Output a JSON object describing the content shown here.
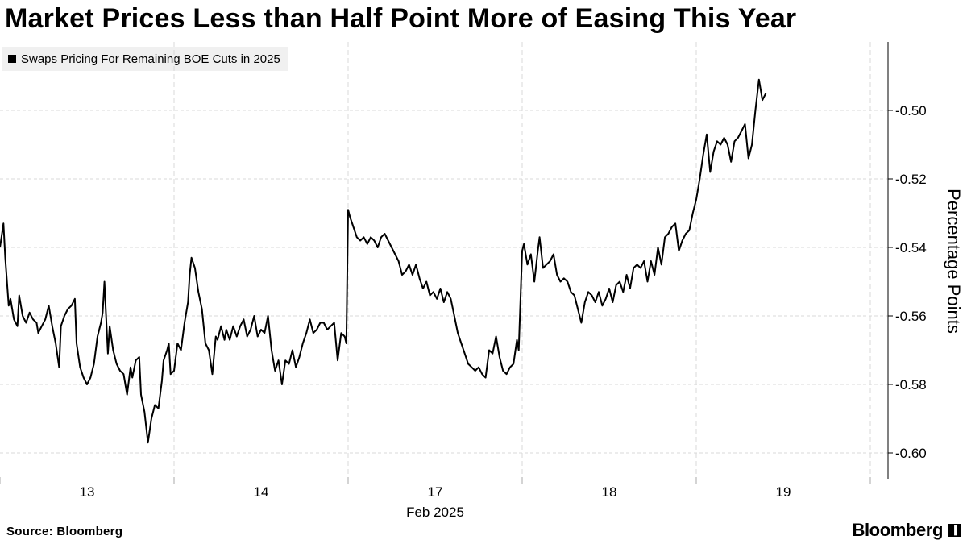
{
  "header": {
    "title": "Market Prices Less than Half Point More of Easing This Year"
  },
  "legend": {
    "label": "Swaps Pricing For Remaining BOE Cuts in 2025"
  },
  "footer": {
    "source": "Source: Bloomberg",
    "brand": "Bloomberg",
    "brand_badge_icon": "bloomberg-terminal-icon"
  },
  "colors": {
    "line": "#000000",
    "grid": "#d9d9d9",
    "legend_bg": "#f0f0f0"
  },
  "chart_data": {
    "type": "line",
    "title": "Market Prices Less than Half Point More of Easing This Year",
    "ylabel": "Percentage Points",
    "xlabel_secondary": "Feb 2025",
    "ylim": [
      -0.607,
      -0.481
    ],
    "y_ticks": [
      -0.5,
      -0.52,
      -0.54,
      -0.56,
      -0.58,
      -0.6
    ],
    "y_tick_labels": [
      "-0.50",
      "-0.52",
      "-0.54",
      "-0.56",
      "-0.58",
      "-0.60"
    ],
    "x_range": [
      0,
      5
    ],
    "day_boundaries": [
      0,
      1,
      2,
      3,
      4,
      5
    ],
    "x_ticks": [
      {
        "label": "13",
        "x": 0.5
      },
      {
        "label": "14",
        "x": 1.5
      },
      {
        "label": "17",
        "x": 2.5
      },
      {
        "label": "18",
        "x": 3.5
      },
      {
        "label": "19",
        "x": 4.5
      }
    ],
    "grid": true,
    "legend_position": "top-left",
    "y_axis_side": "right",
    "series": [
      {
        "name": "Swaps Pricing For Remaining BOE Cuts in 2025",
        "points": [
          [
            0.0,
            -0.54
          ],
          [
            0.02,
            -0.533
          ],
          [
            0.03,
            -0.543
          ],
          [
            0.05,
            -0.557
          ],
          [
            0.06,
            -0.555
          ],
          [
            0.08,
            -0.561
          ],
          [
            0.1,
            -0.563
          ],
          [
            0.11,
            -0.554
          ],
          [
            0.13,
            -0.56
          ],
          [
            0.15,
            -0.562
          ],
          [
            0.17,
            -0.559
          ],
          [
            0.19,
            -0.561
          ],
          [
            0.21,
            -0.562
          ],
          [
            0.22,
            -0.565
          ],
          [
            0.24,
            -0.563
          ],
          [
            0.26,
            -0.561
          ],
          [
            0.28,
            -0.557
          ],
          [
            0.3,
            -0.563
          ],
          [
            0.32,
            -0.568
          ],
          [
            0.34,
            -0.575
          ],
          [
            0.35,
            -0.563
          ],
          [
            0.37,
            -0.56
          ],
          [
            0.39,
            -0.558
          ],
          [
            0.41,
            -0.557
          ],
          [
            0.43,
            -0.555
          ],
          [
            0.44,
            -0.568
          ],
          [
            0.46,
            -0.575
          ],
          [
            0.48,
            -0.578
          ],
          [
            0.5,
            -0.58
          ],
          [
            0.52,
            -0.578
          ],
          [
            0.54,
            -0.574
          ],
          [
            0.56,
            -0.566
          ],
          [
            0.58,
            -0.562
          ],
          [
            0.59,
            -0.559
          ],
          [
            0.6,
            -0.55
          ],
          [
            0.62,
            -0.571
          ],
          [
            0.63,
            -0.563
          ],
          [
            0.65,
            -0.57
          ],
          [
            0.67,
            -0.574
          ],
          [
            0.69,
            -0.576
          ],
          [
            0.71,
            -0.577
          ],
          [
            0.73,
            -0.583
          ],
          [
            0.75,
            -0.575
          ],
          [
            0.76,
            -0.578
          ],
          [
            0.78,
            -0.573
          ],
          [
            0.8,
            -0.572
          ],
          [
            0.81,
            -0.583
          ],
          [
            0.83,
            -0.588
          ],
          [
            0.85,
            -0.597
          ],
          [
            0.87,
            -0.59
          ],
          [
            0.89,
            -0.586
          ],
          [
            0.91,
            -0.587
          ],
          [
            0.93,
            -0.579
          ],
          [
            0.94,
            -0.573
          ],
          [
            0.96,
            -0.57
          ],
          [
            0.97,
            -0.568
          ],
          [
            0.98,
            -0.577
          ],
          [
            1.0,
            -0.576
          ],
          [
            1.02,
            -0.568
          ],
          [
            1.04,
            -0.57
          ],
          [
            1.06,
            -0.562
          ],
          [
            1.08,
            -0.556
          ],
          [
            1.09,
            -0.548
          ],
          [
            1.1,
            -0.543
          ],
          [
            1.12,
            -0.546
          ],
          [
            1.14,
            -0.553
          ],
          [
            1.16,
            -0.558
          ],
          [
            1.18,
            -0.568
          ],
          [
            1.2,
            -0.57
          ],
          [
            1.22,
            -0.577
          ],
          [
            1.24,
            -0.566
          ],
          [
            1.25,
            -0.567
          ],
          [
            1.27,
            -0.563
          ],
          [
            1.29,
            -0.567
          ],
          [
            1.3,
            -0.564
          ],
          [
            1.32,
            -0.567
          ],
          [
            1.34,
            -0.563
          ],
          [
            1.36,
            -0.566
          ],
          [
            1.38,
            -0.563
          ],
          [
            1.4,
            -0.561
          ],
          [
            1.42,
            -0.566
          ],
          [
            1.44,
            -0.564
          ],
          [
            1.46,
            -0.56
          ],
          [
            1.48,
            -0.566
          ],
          [
            1.5,
            -0.564
          ],
          [
            1.52,
            -0.565
          ],
          [
            1.54,
            -0.56
          ],
          [
            1.56,
            -0.57
          ],
          [
            1.58,
            -0.576
          ],
          [
            1.6,
            -0.573
          ],
          [
            1.62,
            -0.58
          ],
          [
            1.64,
            -0.573
          ],
          [
            1.66,
            -0.574
          ],
          [
            1.68,
            -0.57
          ],
          [
            1.7,
            -0.575
          ],
          [
            1.72,
            -0.572
          ],
          [
            1.74,
            -0.568
          ],
          [
            1.76,
            -0.565
          ],
          [
            1.78,
            -0.561
          ],
          [
            1.8,
            -0.565
          ],
          [
            1.82,
            -0.564
          ],
          [
            1.84,
            -0.562
          ],
          [
            1.86,
            -0.562
          ],
          [
            1.88,
            -0.564
          ],
          [
            1.9,
            -0.563
          ],
          [
            1.92,
            -0.562
          ],
          [
            1.94,
            -0.573
          ],
          [
            1.96,
            -0.565
          ],
          [
            1.98,
            -0.566
          ],
          [
            1.99,
            -0.568
          ],
          [
            2.0,
            -0.529
          ],
          [
            2.01,
            -0.531
          ],
          [
            2.03,
            -0.534
          ],
          [
            2.05,
            -0.537
          ],
          [
            2.07,
            -0.538
          ],
          [
            2.09,
            -0.537
          ],
          [
            2.11,
            -0.539
          ],
          [
            2.13,
            -0.537
          ],
          [
            2.15,
            -0.538
          ],
          [
            2.17,
            -0.54
          ],
          [
            2.19,
            -0.537
          ],
          [
            2.21,
            -0.536
          ],
          [
            2.23,
            -0.538
          ],
          [
            2.25,
            -0.54
          ],
          [
            2.27,
            -0.542
          ],
          [
            2.29,
            -0.544
          ],
          [
            2.31,
            -0.548
          ],
          [
            2.33,
            -0.547
          ],
          [
            2.35,
            -0.545
          ],
          [
            2.37,
            -0.548
          ],
          [
            2.39,
            -0.545
          ],
          [
            2.41,
            -0.549
          ],
          [
            2.43,
            -0.552
          ],
          [
            2.45,
            -0.55
          ],
          [
            2.47,
            -0.554
          ],
          [
            2.49,
            -0.553
          ],
          [
            2.51,
            -0.555
          ],
          [
            2.53,
            -0.552
          ],
          [
            2.55,
            -0.556
          ],
          [
            2.57,
            -0.553
          ],
          [
            2.59,
            -0.555
          ],
          [
            2.61,
            -0.56
          ],
          [
            2.63,
            -0.565
          ],
          [
            2.65,
            -0.568
          ],
          [
            2.67,
            -0.571
          ],
          [
            2.69,
            -0.574
          ],
          [
            2.71,
            -0.575
          ],
          [
            2.73,
            -0.576
          ],
          [
            2.75,
            -0.575
          ],
          [
            2.77,
            -0.577
          ],
          [
            2.79,
            -0.578
          ],
          [
            2.81,
            -0.57
          ],
          [
            2.83,
            -0.571
          ],
          [
            2.85,
            -0.566
          ],
          [
            2.87,
            -0.572
          ],
          [
            2.89,
            -0.576
          ],
          [
            2.91,
            -0.577
          ],
          [
            2.93,
            -0.575
          ],
          [
            2.95,
            -0.574
          ],
          [
            2.97,
            -0.567
          ],
          [
            2.98,
            -0.57
          ],
          [
            3.0,
            -0.541
          ],
          [
            3.01,
            -0.539
          ],
          [
            3.03,
            -0.545
          ],
          [
            3.05,
            -0.542
          ],
          [
            3.07,
            -0.55
          ],
          [
            3.09,
            -0.541
          ],
          [
            3.1,
            -0.537
          ],
          [
            3.12,
            -0.546
          ],
          [
            3.14,
            -0.545
          ],
          [
            3.16,
            -0.544
          ],
          [
            3.18,
            -0.542
          ],
          [
            3.2,
            -0.548
          ],
          [
            3.22,
            -0.55
          ],
          [
            3.24,
            -0.549
          ],
          [
            3.26,
            -0.55
          ],
          [
            3.28,
            -0.553
          ],
          [
            3.3,
            -0.554
          ],
          [
            3.32,
            -0.558
          ],
          [
            3.34,
            -0.562
          ],
          [
            3.36,
            -0.556
          ],
          [
            3.38,
            -0.553
          ],
          [
            3.4,
            -0.554
          ],
          [
            3.42,
            -0.556
          ],
          [
            3.44,
            -0.553
          ],
          [
            3.46,
            -0.557
          ],
          [
            3.48,
            -0.555
          ],
          [
            3.5,
            -0.552
          ],
          [
            3.52,
            -0.556
          ],
          [
            3.54,
            -0.551
          ],
          [
            3.56,
            -0.55
          ],
          [
            3.58,
            -0.553
          ],
          [
            3.6,
            -0.548
          ],
          [
            3.62,
            -0.552
          ],
          [
            3.64,
            -0.546
          ],
          [
            3.66,
            -0.545
          ],
          [
            3.68,
            -0.546
          ],
          [
            3.7,
            -0.544
          ],
          [
            3.72,
            -0.55
          ],
          [
            3.74,
            -0.544
          ],
          [
            3.76,
            -0.548
          ],
          [
            3.78,
            -0.54
          ],
          [
            3.8,
            -0.545
          ],
          [
            3.82,
            -0.537
          ],
          [
            3.84,
            -0.536
          ],
          [
            3.86,
            -0.534
          ],
          [
            3.88,
            -0.533
          ],
          [
            3.9,
            -0.541
          ],
          [
            3.92,
            -0.538
          ],
          [
            3.94,
            -0.536
          ],
          [
            3.96,
            -0.535
          ],
          [
            3.98,
            -0.53
          ],
          [
            4.0,
            -0.526
          ],
          [
            4.02,
            -0.52
          ],
          [
            4.04,
            -0.513
          ],
          [
            4.06,
            -0.507
          ],
          [
            4.08,
            -0.518
          ],
          [
            4.1,
            -0.512
          ],
          [
            4.12,
            -0.509
          ],
          [
            4.14,
            -0.51
          ],
          [
            4.16,
            -0.508
          ],
          [
            4.18,
            -0.51
          ],
          [
            4.2,
            -0.515
          ],
          [
            4.22,
            -0.509
          ],
          [
            4.24,
            -0.508
          ],
          [
            4.26,
            -0.506
          ],
          [
            4.28,
            -0.504
          ],
          [
            4.3,
            -0.514
          ],
          [
            4.32,
            -0.51
          ],
          [
            4.34,
            -0.5
          ],
          [
            4.36,
            -0.491
          ],
          [
            4.38,
            -0.497
          ],
          [
            4.4,
            -0.495
          ]
        ]
      }
    ]
  }
}
